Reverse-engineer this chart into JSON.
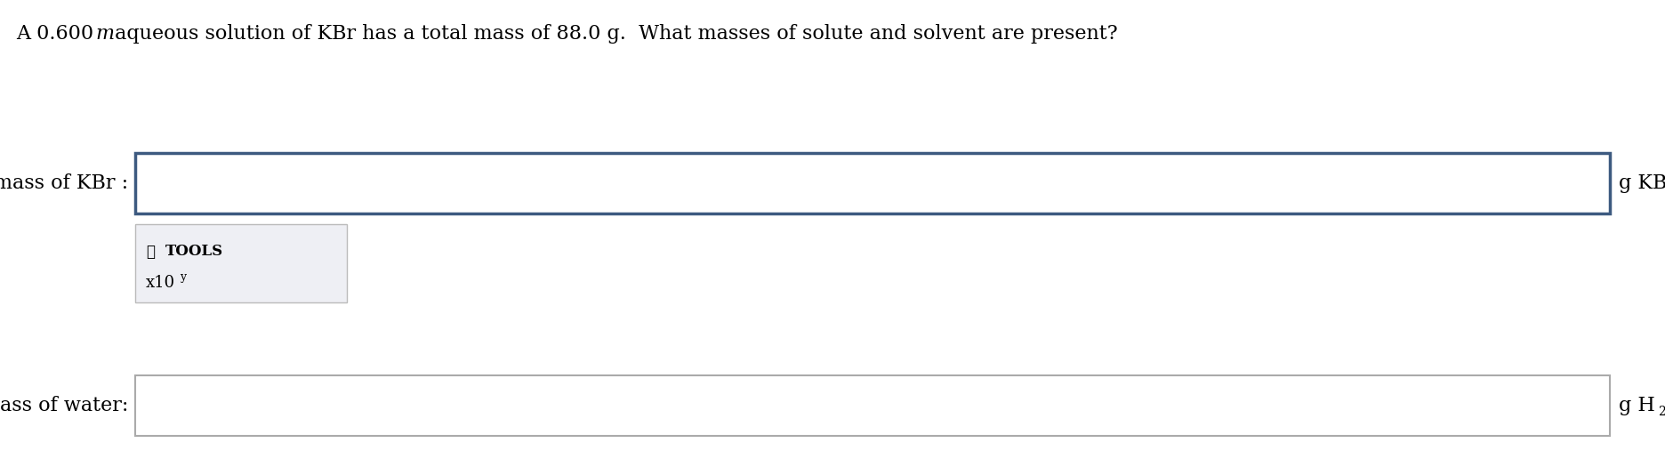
{
  "title_parts": [
    {
      "text": "A 0.600 ",
      "style": "normal"
    },
    {
      "text": "m",
      "style": "italic"
    },
    {
      "text": " aqueous solution of KBr has a total mass of 88.0 g.  What masses of solute and solvent are present?",
      "style": "normal"
    }
  ],
  "background_color": "#ffffff",
  "label1": "mass of KBr :",
  "label2": "mass of water:",
  "unit1": "g KBr",
  "box1_color": "#3d5a80",
  "box2_color": "#aaaaaa",
  "box_fill": "#ffffff",
  "tools_box_color": "#eeeff4",
  "tools_box_border": "#bbbbbb",
  "tools_icon": "⚒",
  "tools_label": " TOOLS",
  "tools_x10": "x10",
  "tools_x10_exp": "y",
  "title_fontsize": 16,
  "label_fontsize": 16,
  "unit_fontsize": 16
}
